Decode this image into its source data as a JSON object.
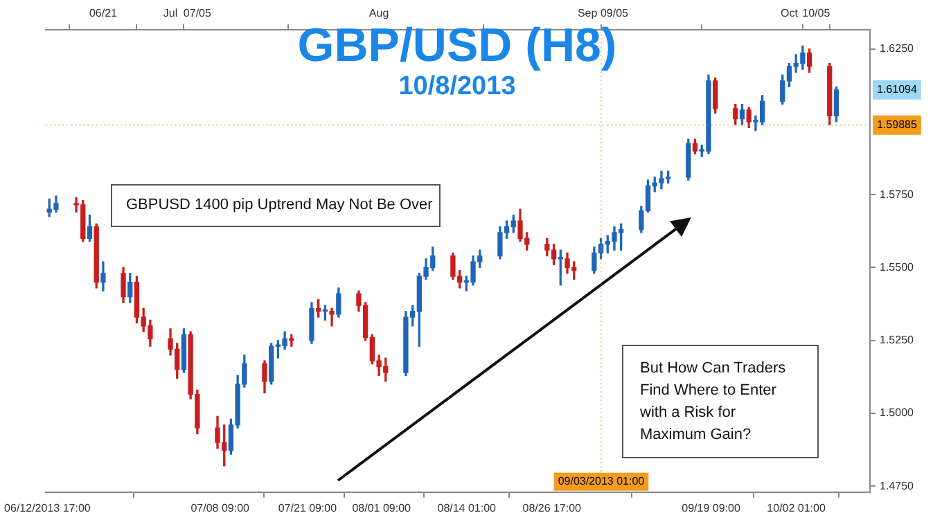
{
  "chart_data": {
    "type": "candlestick",
    "title": "GBP/USD (H8)",
    "subtitle": "10/8/2013",
    "x": [
      "2013-06-13",
      "2013-06-14",
      "2013-06-17",
      "2013-06-18",
      "2013-06-19",
      "2013-06-20",
      "2013-06-21",
      "2013-06-24",
      "2013-06-25",
      "2013-06-26",
      "2013-06-27",
      "2013-06-28",
      "2013-07-01",
      "2013-07-02",
      "2013-07-03",
      "2013-07-04",
      "2013-07-05",
      "2013-07-08",
      "2013-07-09",
      "2013-07-10",
      "2013-07-11",
      "2013-07-12",
      "2013-07-15",
      "2013-07-16",
      "2013-07-17",
      "2013-07-18",
      "2013-07-19",
      "2013-07-22",
      "2013-07-23",
      "2013-07-24",
      "2013-07-25",
      "2013-07-26",
      "2013-07-29",
      "2013-07-30",
      "2013-07-31",
      "2013-08-01",
      "2013-08-02",
      "2013-08-05",
      "2013-08-06",
      "2013-08-07",
      "2013-08-08",
      "2013-08-09",
      "2013-08-12",
      "2013-08-13",
      "2013-08-14",
      "2013-08-15",
      "2013-08-16",
      "2013-08-19",
      "2013-08-20",
      "2013-08-21",
      "2013-08-22",
      "2013-08-23",
      "2013-08-26",
      "2013-08-27",
      "2013-08-28",
      "2013-08-29",
      "2013-08-30",
      "2013-09-02",
      "2013-09-03",
      "2013-09-04",
      "2013-09-05",
      "2013-09-06",
      "2013-09-09",
      "2013-09-10",
      "2013-09-11",
      "2013-09-12",
      "2013-09-13",
      "2013-09-16",
      "2013-09-17",
      "2013-09-18",
      "2013-09-19",
      "2013-09-20",
      "2013-09-23",
      "2013-09-24",
      "2013-09-25",
      "2013-09-26",
      "2013-09-27",
      "2013-09-30",
      "2013-10-01",
      "2013-10-02",
      "2013-10-03",
      "2013-10-04",
      "2013-10-07",
      "2013-10-08"
    ],
    "ohlc": [
      [
        1.569,
        1.5735,
        1.5675,
        1.57
      ],
      [
        1.57,
        1.5745,
        1.569,
        1.572
      ],
      [
        1.572,
        1.574,
        1.569,
        1.5715
      ],
      [
        1.5715,
        1.573,
        1.559,
        1.56
      ],
      [
        1.56,
        1.568,
        1.559,
        1.564
      ],
      [
        1.564,
        1.565,
        1.543,
        1.545
      ],
      [
        1.545,
        1.552,
        1.542,
        1.548
      ],
      [
        1.548,
        1.55,
        1.538,
        1.54
      ],
      [
        1.54,
        1.548,
        1.538,
        1.545
      ],
      [
        1.545,
        1.547,
        1.531,
        1.533
      ],
      [
        1.533,
        1.536,
        1.528,
        1.53
      ],
      [
        1.53,
        1.532,
        1.523,
        1.5256
      ],
      [
        1.5256,
        1.529,
        1.52,
        1.522
      ],
      [
        1.522,
        1.524,
        1.512,
        1.515
      ],
      [
        1.515,
        1.529,
        1.514,
        1.527
      ],
      [
        1.527,
        1.528,
        1.505,
        1.5065
      ],
      [
        1.5065,
        1.508,
        1.493,
        1.495
      ],
      [
        1.495,
        1.499,
        1.488,
        1.49
      ],
      [
        1.49,
        1.496,
        1.482,
        1.4873
      ],
      [
        1.4873,
        1.498,
        1.486,
        1.496
      ],
      [
        1.496,
        1.513,
        1.495,
        1.51
      ],
      [
        1.51,
        1.52,
        1.509,
        1.517
      ],
      [
        1.517,
        1.518,
        1.507,
        1.511
      ],
      [
        1.511,
        1.524,
        1.51,
        1.523
      ],
      [
        1.523,
        1.525,
        1.519,
        1.5232
      ],
      [
        1.5232,
        1.528,
        1.522,
        1.5256
      ],
      [
        1.5256,
        1.527,
        1.523,
        1.525
      ],
      [
        1.525,
        1.538,
        1.524,
        1.536
      ],
      [
        1.536,
        1.539,
        1.533,
        1.535
      ],
      [
        1.535,
        1.537,
        1.532,
        1.535
      ],
      [
        1.535,
        1.536,
        1.53,
        1.534
      ],
      [
        1.534,
        1.543,
        1.533,
        1.541
      ],
      [
        1.541,
        1.542,
        1.535,
        1.537
      ],
      [
        1.537,
        1.538,
        1.525,
        1.526
      ],
      [
        1.526,
        1.527,
        1.517,
        1.518
      ],
      [
        1.518,
        1.52,
        1.513,
        1.516
      ],
      [
        1.516,
        1.519,
        1.511,
        1.514
      ],
      [
        1.514,
        1.535,
        1.513,
        1.533
      ],
      [
        1.533,
        1.537,
        1.53,
        1.535
      ],
      [
        1.535,
        1.548,
        1.523,
        1.547
      ],
      [
        1.547,
        1.553,
        1.546,
        1.55
      ],
      [
        1.55,
        1.557,
        1.549,
        1.554
      ],
      [
        1.554,
        1.555,
        1.546,
        1.547
      ],
      [
        1.547,
        1.549,
        1.543,
        1.545
      ],
      [
        1.545,
        1.547,
        1.542,
        1.545
      ],
      [
        1.545,
        1.554,
        1.544,
        1.552
      ],
      [
        1.552,
        1.556,
        1.55,
        1.554
      ],
      [
        1.554,
        1.564,
        1.553,
        1.562
      ],
      [
        1.562,
        1.566,
        1.56,
        1.564
      ],
      [
        1.564,
        1.568,
        1.562,
        1.566
      ],
      [
        1.566,
        1.57,
        1.559,
        1.56
      ],
      [
        1.56,
        1.562,
        1.556,
        1.558
      ],
      [
        1.558,
        1.56,
        1.554,
        1.556
      ],
      [
        1.556,
        1.558,
        1.551,
        1.553
      ],
      [
        1.553,
        1.556,
        1.544,
        1.553
      ],
      [
        1.553,
        1.555,
        1.548,
        1.55
      ],
      [
        1.55,
        1.552,
        1.546,
        1.549
      ],
      [
        1.549,
        1.557,
        1.548,
        1.555
      ],
      [
        1.555,
        1.56,
        1.553,
        1.558
      ],
      [
        1.558,
        1.561,
        1.555,
        1.559
      ],
      [
        1.559,
        1.564,
        1.556,
        1.562
      ],
      [
        1.562,
        1.565,
        1.556,
        1.563
      ],
      [
        1.563,
        1.571,
        1.562,
        1.5695
      ],
      [
        1.5695,
        1.58,
        1.569,
        1.578
      ],
      [
        1.578,
        1.581,
        1.576,
        1.579
      ],
      [
        1.579,
        1.583,
        1.577,
        1.5805
      ],
      [
        1.5805,
        1.583,
        1.579,
        1.581
      ],
      [
        1.581,
        1.594,
        1.58,
        1.5925
      ],
      [
        1.5925,
        1.594,
        1.589,
        1.59
      ],
      [
        1.59,
        1.592,
        1.588,
        1.59
      ],
      [
        1.59,
        1.616,
        1.589,
        1.614
      ],
      [
        1.614,
        1.615,
        1.603,
        1.6045
      ],
      [
        1.6045,
        1.606,
        1.599,
        1.601
      ],
      [
        1.601,
        1.606,
        1.599,
        1.604
      ],
      [
        1.604,
        1.605,
        1.598,
        1.6
      ],
      [
        1.6,
        1.602,
        1.597,
        1.6
      ],
      [
        1.6,
        1.609,
        1.599,
        1.607
      ],
      [
        1.607,
        1.616,
        1.606,
        1.614
      ],
      [
        1.614,
        1.62,
        1.612,
        1.619
      ],
      [
        1.619,
        1.623,
        1.617,
        1.62
      ],
      [
        1.62,
        1.626,
        1.618,
        1.6236
      ],
      [
        1.6236,
        1.625,
        1.617,
        1.619
      ],
      [
        1.619,
        1.62,
        1.599,
        1.602
      ],
      [
        1.602,
        1.612,
        1.6,
        1.6109
      ]
    ],
    "xlim": [
      "2013-06-12T12:00",
      "2013-10-13T00:00"
    ],
    "xticks": [
      {
        "value": "2013-06-12T17:00",
        "label": "06/12/2013 17:00"
      },
      {
        "value": "2013-07-08T09:00",
        "label": "07/08 09:00"
      },
      {
        "value": "2013-07-21T09:00",
        "label": "07/21 09:00"
      },
      {
        "value": "2013-08-01T09:00",
        "label": "08/01 09:00"
      },
      {
        "value": "2013-08-14T01:00",
        "label": "08/14 01:00"
      },
      {
        "value": "2013-08-26T17:00",
        "label": "08/26 17:00"
      },
      {
        "value": "2013-09-19T09:00",
        "label": "09/19 09:00"
      },
      {
        "value": "2013-10-02T01:00",
        "label": "10/02 01:00"
      }
    ],
    "x2lim": [
      "2013-06-12T12:00",
      "2013-10-13T00:00"
    ],
    "x2ticks": [
      {
        "value": "2013-06-21",
        "label": "06/21"
      },
      {
        "value": "2013-07-01",
        "label": "Jul"
      },
      {
        "value": "2013-07-05",
        "label": "07/05"
      },
      {
        "value": "2013-08-01",
        "label": "Aug"
      },
      {
        "value": "2013-09-01",
        "label": "Sep"
      },
      {
        "value": "2013-09-05",
        "label": "09/05"
      },
      {
        "value": "2013-10-01",
        "label": "Oct"
      },
      {
        "value": "2013-10-05",
        "label": "10/05"
      }
    ],
    "ylim": [
      1.473,
      1.6315
    ],
    "yticks": [
      {
        "value": 1.475,
        "label": "1.4750"
      },
      {
        "value": 1.5,
        "label": "1.5000"
      },
      {
        "value": 1.525,
        "label": "1.5250"
      },
      {
        "value": 1.55,
        "label": "1.5500"
      },
      {
        "value": 1.575,
        "label": "1.5750"
      },
      {
        "value": 1.625,
        "label": "1.6250"
      }
    ],
    "ref_lines": [
      {
        "axis": "y",
        "value": 1.59885,
        "label": "1.59885",
        "color": "#f59c1a",
        "line_style": "dotted"
      },
      {
        "axis": "x",
        "value": "2013-09-03T01:00",
        "label": "09/03/2013 01:00",
        "color": "#f59c1a",
        "line_style": "dotted"
      }
    ],
    "annotations": [
      {
        "text": "1.61094",
        "y": 1.61094
      },
      "GBPUSD 1400 pip Uptrend May Not Be Over",
      "But How Can Traders Find Where to Enter with a Risk for Maximum Gain?"
    ]
  }
}
